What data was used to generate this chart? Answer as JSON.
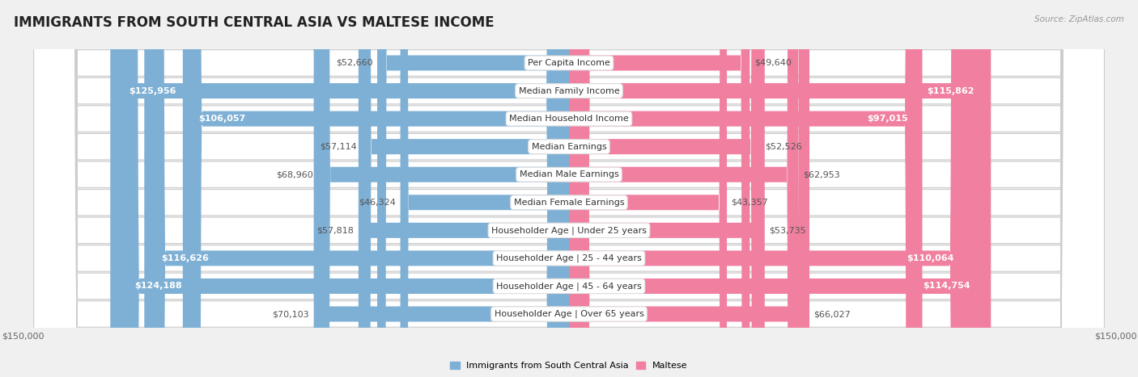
{
  "title": "IMMIGRANTS FROM SOUTH CENTRAL ASIA VS MALTESE INCOME",
  "source": "Source: ZipAtlas.com",
  "categories": [
    "Per Capita Income",
    "Median Family Income",
    "Median Household Income",
    "Median Earnings",
    "Median Male Earnings",
    "Median Female Earnings",
    "Householder Age | Under 25 years",
    "Householder Age | 25 - 44 years",
    "Householder Age | 45 - 64 years",
    "Householder Age | Over 65 years"
  ],
  "left_values": [
    52660,
    125956,
    106057,
    57114,
    68960,
    46324,
    57818,
    116626,
    124188,
    70103
  ],
  "right_values": [
    49640,
    115862,
    97015,
    52526,
    62953,
    43357,
    53735,
    110064,
    114754,
    66027
  ],
  "left_labels": [
    "$52,660",
    "$125,956",
    "$106,057",
    "$57,114",
    "$68,960",
    "$46,324",
    "$57,818",
    "$116,626",
    "$124,188",
    "$70,103"
  ],
  "right_labels": [
    "$49,640",
    "$115,862",
    "$97,015",
    "$52,526",
    "$62,953",
    "$43,357",
    "$53,735",
    "$110,064",
    "$114,754",
    "$66,027"
  ],
  "left_color": "#7eb0d5",
  "right_color": "#f07fa0",
  "left_legend": "Immigrants from South Central Asia",
  "right_legend": "Maltese",
  "max_val": 150000,
  "xlabel_left": "$150,000",
  "xlabel_right": "$150,000",
  "bg_color": "#f0f0f0",
  "row_bg_color": "#ffffff",
  "title_fontsize": 12,
  "label_fontsize": 8,
  "value_fontsize": 8,
  "axis_fontsize": 8,
  "large_threshold": 85000
}
